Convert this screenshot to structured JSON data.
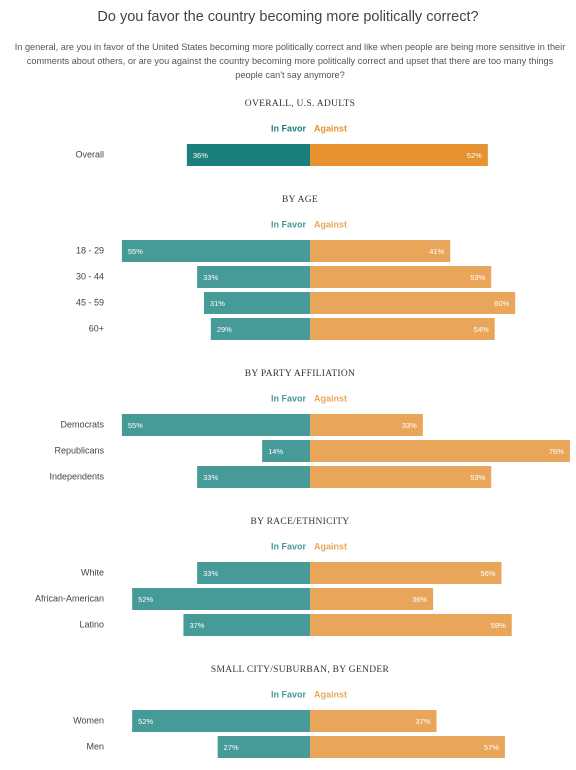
{
  "header": {
    "title": "Do you favor the country becoming more politically correct?",
    "subtitle": "In general, are you in favor of the United States becoming more politically correct and like when people are being more sensitive in their comments about others, or are you against the country becoming more politically correct and upset that there are too many things people can't say anymore?"
  },
  "chart_data": [
    {
      "type": "diverging-bar",
      "title": "OVERALL, U.S. ADULTS",
      "categories": [
        "Overall"
      ],
      "series": [
        {
          "name": "In Favor",
          "color": "#1b7f7c",
          "values": [
            36
          ],
          "value_labels": [
            "36%"
          ]
        },
        {
          "name": "Against",
          "color": "#e6922f",
          "values": [
            52
          ],
          "value_labels": [
            "52%"
          ]
        }
      ]
    },
    {
      "type": "diverging-bar",
      "title": "BY AGE",
      "categories": [
        "18 - 29",
        "30 - 44",
        "45 - 59",
        "60+"
      ],
      "series": [
        {
          "name": "In Favor",
          "color": "#469a97",
          "values": [
            55,
            33,
            31,
            29
          ],
          "value_labels": [
            "55%",
            "33%",
            "31%",
            "29%"
          ]
        },
        {
          "name": "Against",
          "color": "#e9a65b",
          "values": [
            41,
            53,
            60,
            54
          ],
          "value_labels": [
            "41%",
            "53%",
            "60%",
            "54%"
          ]
        }
      ]
    },
    {
      "type": "diverging-bar",
      "title": "BY PARTY AFFILIATION",
      "categories": [
        "Democrats",
        "Republicans",
        "Independents"
      ],
      "series": [
        {
          "name": "In Favor",
          "color": "#469a97",
          "values": [
            55,
            14,
            33
          ],
          "value_labels": [
            "55%",
            "14%",
            "33%"
          ]
        },
        {
          "name": "Against",
          "color": "#e9a65b",
          "values": [
            33,
            76,
            53
          ],
          "value_labels": [
            "33%",
            "76%",
            "53%"
          ]
        }
      ]
    },
    {
      "type": "diverging-bar",
      "title": "BY RACE/ETHNICITY",
      "categories": [
        "White",
        "African-American",
        "Latino"
      ],
      "series": [
        {
          "name": "In Favor",
          "color": "#469a97",
          "values": [
            33,
            52,
            37
          ],
          "value_labels": [
            "33%",
            "52%",
            "37%"
          ]
        },
        {
          "name": "Against",
          "color": "#e9a65b",
          "values": [
            56,
            36,
            59
          ],
          "value_labels": [
            "56%",
            "36%",
            "59%"
          ]
        }
      ]
    },
    {
      "type": "diverging-bar",
      "title": "SMALL CITY/SUBURBAN, BY GENDER",
      "categories": [
        "Women",
        "Men"
      ],
      "series": [
        {
          "name": "In Favor",
          "color": "#469a97",
          "values": [
            52,
            27
          ],
          "value_labels": [
            "52%",
            "27%"
          ]
        },
        {
          "name": "Against",
          "color": "#e9a65b",
          "values": [
            37,
            57
          ],
          "value_labels": [
            "37%",
            "57%"
          ]
        }
      ]
    }
  ]
}
